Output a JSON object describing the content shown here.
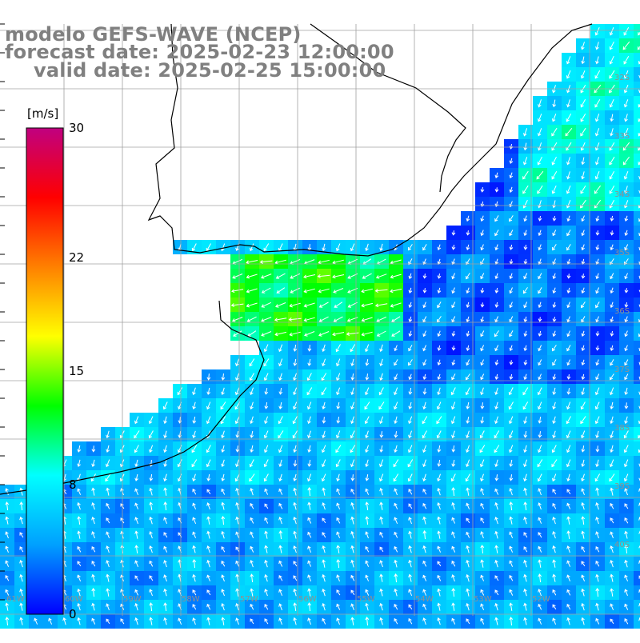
{
  "title": {
    "line1": "modelo GEFS-WAVE (NCEP)",
    "line2": "forecast date: 2025-02-23 12:00:00",
    "line3": "valid date: 2025-02-25 15:00:00"
  },
  "colorbar": {
    "unit": "[m/s]",
    "min": 0,
    "max": 30,
    "ticks": [
      "30",
      "22",
      "15",
      "8",
      "0"
    ],
    "tick_values": [
      30,
      22,
      15,
      8,
      0
    ],
    "stops": [
      "#0000ff",
      "#00a0ff",
      "#00ffff",
      "#00ff00",
      "#ffff00",
      "#ff8000",
      "#ff0000",
      "#c00080"
    ]
  },
  "map": {
    "field": "wind speed and direction",
    "land_color": "#ffffff",
    "coast_color": "#000000",
    "grid_color": "#a0a0a0",
    "arrow_color": "#ffffff",
    "lat_labels": [
      "32S",
      "33S",
      "34S",
      "35S",
      "36S",
      "37S",
      "38S",
      "39S",
      "40S"
    ],
    "lon_labels": [
      "61W",
      "60W",
      "59W",
      "58W",
      "57W",
      "56W",
      "55W",
      "54W",
      "53W",
      "52W"
    ],
    "regions": {
      "offshore_north": {
        "speed": 3,
        "dir": 200
      },
      "rio_de_la_plata": {
        "speed": 12,
        "dir": 250
      },
      "shelf_central": {
        "speed": 6,
        "dir": 200
      },
      "south": {
        "speed": 5,
        "dir": 340
      },
      "north_cyan": {
        "speed": 8,
        "dir": 205
      }
    }
  }
}
